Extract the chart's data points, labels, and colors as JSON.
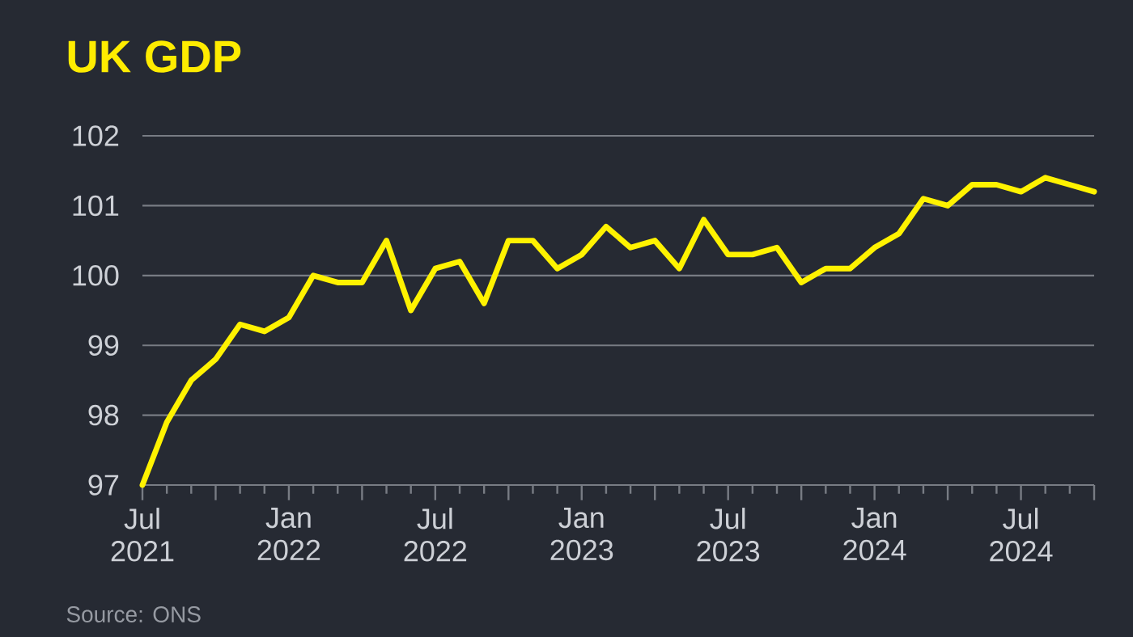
{
  "chart_data": {
    "type": "line",
    "title": "UK GDP",
    "x": [
      "2021-07",
      "2021-08",
      "2021-09",
      "2021-10",
      "2021-11",
      "2021-12",
      "2022-01",
      "2022-02",
      "2022-03",
      "2022-04",
      "2022-05",
      "2022-06",
      "2022-07",
      "2022-08",
      "2022-09",
      "2022-10",
      "2022-11",
      "2022-12",
      "2023-01",
      "2023-02",
      "2023-03",
      "2023-04",
      "2023-05",
      "2023-06",
      "2023-07",
      "2023-08",
      "2023-09",
      "2023-10",
      "2023-11",
      "2023-12",
      "2024-01",
      "2024-02",
      "2024-03",
      "2024-04",
      "2024-05",
      "2024-06",
      "2024-07",
      "2024-08",
      "2024-09",
      "2024-10"
    ],
    "series": [
      {
        "color": "#fff200",
        "values": [
          97.0,
          97.9,
          98.5,
          98.8,
          99.3,
          99.2,
          99.4,
          100.0,
          99.9,
          99.9,
          100.5,
          99.5,
          100.1,
          100.2,
          99.6,
          100.5,
          100.5,
          100.1,
          100.3,
          100.7,
          100.4,
          100.5,
          100.1,
          100.8,
          100.3,
          100.3,
          100.4,
          99.9,
          100.1,
          100.1,
          100.4,
          100.6,
          101.1,
          101.0,
          101.3,
          101.3,
          101.2,
          101.4,
          101.3,
          101.2
        ]
      }
    ],
    "xlim": [
      "2021-07",
      "2024-10"
    ],
    "xticks": [
      {
        "value": "2021-07",
        "label": "Jul 2021"
      },
      {
        "value": "2021-08",
        "label": null
      },
      {
        "value": "2021-09",
        "label": null
      },
      {
        "value": "2021-10",
        "label": null
      },
      {
        "value": "2021-11",
        "label": null
      },
      {
        "value": "2021-12",
        "label": null
      },
      {
        "value": "2022-01",
        "label": "Jan 2022"
      },
      {
        "value": "2022-02",
        "label": null
      },
      {
        "value": "2022-03",
        "label": null
      },
      {
        "value": "2022-04",
        "label": null
      },
      {
        "value": "2022-05",
        "label": null
      },
      {
        "value": "2022-06",
        "label": null
      },
      {
        "value": "2022-07",
        "label": "Jul 2022"
      },
      {
        "value": "2022-08",
        "label": null
      },
      {
        "value": "2022-09",
        "label": null
      },
      {
        "value": "2022-10",
        "label": null
      },
      {
        "value": "2022-11",
        "label": null
      },
      {
        "value": "2022-12",
        "label": null
      },
      {
        "value": "2023-01",
        "label": "Jan 2023"
      },
      {
        "value": "2023-02",
        "label": null
      },
      {
        "value": "2023-03",
        "label": null
      },
      {
        "value": "2023-04",
        "label": null
      },
      {
        "value": "2023-05",
        "label": null
      },
      {
        "value": "2023-06",
        "label": null
      },
      {
        "value": "2023-07",
        "label": "Jul 2023"
      },
      {
        "value": "2023-08",
        "label": null
      },
      {
        "value": "2023-09",
        "label": null
      },
      {
        "value": "2023-10",
        "label": null
      },
      {
        "value": "2023-11",
        "label": null
      },
      {
        "value": "2023-12",
        "label": null
      },
      {
        "value": "2024-01",
        "label": "Jan 2024"
      },
      {
        "value": "2024-02",
        "label": null
      },
      {
        "value": "2024-03",
        "label": null
      },
      {
        "value": "2024-04",
        "label": null
      },
      {
        "value": "2024-05",
        "label": null
      },
      {
        "value": "2024-06",
        "label": null
      },
      {
        "value": "2024-07",
        "label": "Jul 2024"
      },
      {
        "value": "2024-08",
        "label": null
      },
      {
        "value": "2024-09",
        "label": null
      },
      {
        "value": "2024-10",
        "label": null
      }
    ],
    "ylim": [
      97,
      102
    ],
    "yticks": [
      97,
      98,
      99,
      100,
      101,
      102
    ],
    "grid": "y",
    "marker": "none",
    "line_style": "solid",
    "annotations": [
      "Source: ONS"
    ]
  }
}
